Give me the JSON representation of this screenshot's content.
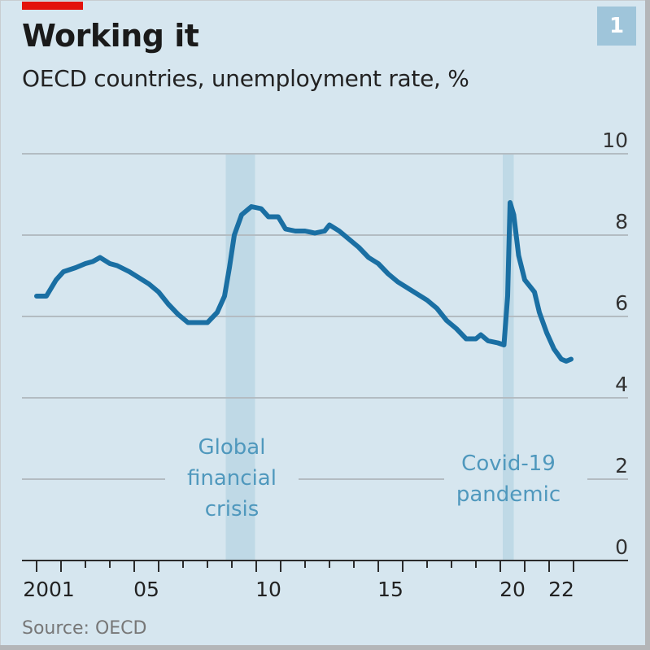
{
  "header": {
    "title": "Working it",
    "subtitle": "OECD countries, unemployment rate, %",
    "chart_number": "1"
  },
  "footer": {
    "source": "Source: OECD"
  },
  "colors": {
    "background": "#d6e6ef",
    "line": "#1a6fa3",
    "shade": "#bfd9e6",
    "annotation": "#4f98bd",
    "brand_red": "#e3120b",
    "badge": "#9fc5da"
  },
  "chart_data": {
    "type": "line",
    "title": "Working it",
    "subtitle": "OECD countries, unemployment rate, %",
    "xlabel": "",
    "ylabel": "",
    "xlim": [
      2001,
      2024
    ],
    "ylim": [
      0,
      10
    ],
    "grid": true,
    "y_ticks": [
      {
        "value": 10,
        "label": "10"
      },
      {
        "value": 8,
        "label": "8"
      },
      {
        "value": 6,
        "label": "6"
      },
      {
        "value": 4,
        "label": "4"
      },
      {
        "value": 2,
        "label": "2"
      },
      {
        "value": 0,
        "label": "0"
      }
    ],
    "x_tick_labels": [
      {
        "year": 2001,
        "label": "2001"
      },
      {
        "year": 2005,
        "label": "05"
      },
      {
        "year": 2010,
        "label": "10"
      },
      {
        "year": 2015,
        "label": "15"
      },
      {
        "year": 2020,
        "label": "20"
      },
      {
        "year": 2022,
        "label": "22"
      }
    ],
    "shaded_periods": [
      {
        "name": "gfc",
        "start": 2008.75,
        "end": 2009.95,
        "label_lines": [
          "Global",
          "financial",
          "crisis"
        ]
      },
      {
        "name": "covid",
        "start": 2020.1,
        "end": 2020.55,
        "label_lines": [
          "Covid-19",
          "pandemic"
        ]
      }
    ],
    "series": [
      {
        "name": "OECD unemployment rate",
        "x": [
          2001.0,
          2001.4,
          2001.8,
          2002.1,
          2002.6,
          2003.0,
          2003.3,
          2003.6,
          2004.0,
          2004.3,
          2004.8,
          2005.2,
          2005.6,
          2006.0,
          2006.4,
          2006.8,
          2007.2,
          2007.6,
          2008.0,
          2008.4,
          2008.7,
          2008.9,
          2009.1,
          2009.4,
          2009.8,
          2010.2,
          2010.5,
          2010.9,
          2011.2,
          2011.6,
          2012.0,
          2012.4,
          2012.8,
          2013.0,
          2013.4,
          2013.8,
          2014.2,
          2014.6,
          2015.0,
          2015.4,
          2015.8,
          2016.2,
          2016.6,
          2017.0,
          2017.4,
          2017.8,
          2018.2,
          2018.6,
          2019.0,
          2019.2,
          2019.5,
          2019.9,
          2020.15,
          2020.3,
          2020.4,
          2020.55,
          2020.75,
          2021.0,
          2021.4,
          2021.6,
          2021.9,
          2022.2,
          2022.5,
          2022.7,
          2022.9
        ],
        "values": [
          6.5,
          6.5,
          6.9,
          7.1,
          7.2,
          7.3,
          7.35,
          7.45,
          7.3,
          7.25,
          7.1,
          6.95,
          6.8,
          6.6,
          6.3,
          6.05,
          5.85,
          5.85,
          5.85,
          6.1,
          6.5,
          7.2,
          8.0,
          8.5,
          8.7,
          8.65,
          8.45,
          8.45,
          8.15,
          8.1,
          8.1,
          8.05,
          8.1,
          8.25,
          8.1,
          7.9,
          7.7,
          7.45,
          7.3,
          7.05,
          6.85,
          6.7,
          6.55,
          6.4,
          6.2,
          5.9,
          5.7,
          5.45,
          5.45,
          5.55,
          5.4,
          5.35,
          5.3,
          6.5,
          8.8,
          8.5,
          7.5,
          6.9,
          6.6,
          6.1,
          5.6,
          5.2,
          4.95,
          4.9,
          4.95
        ]
      }
    ]
  }
}
